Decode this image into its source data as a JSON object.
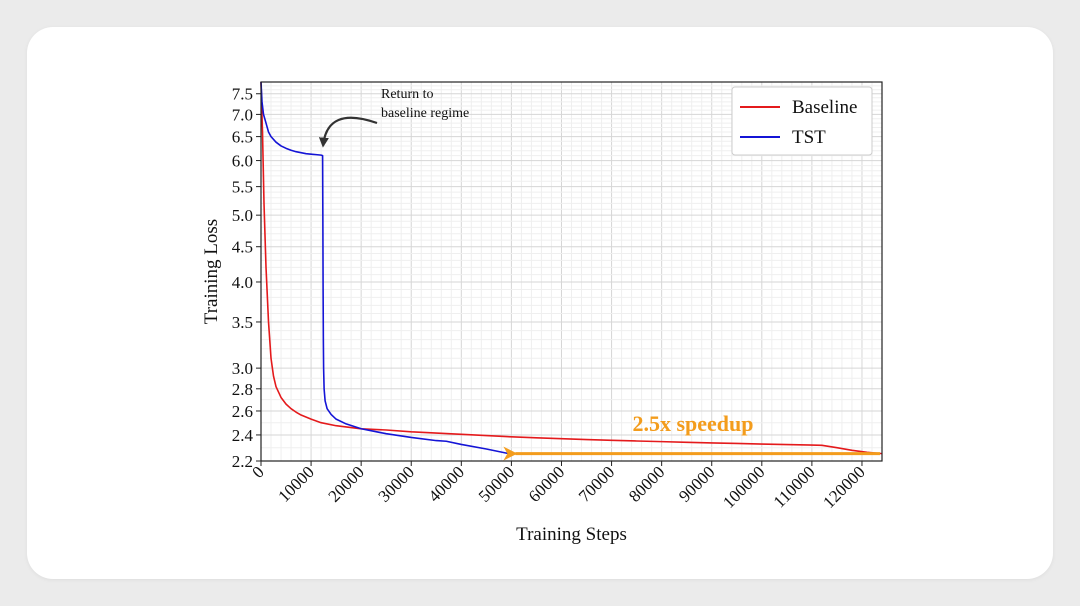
{
  "chart_data": {
    "type": "line",
    "xlabel": "Training Steps",
    "ylabel": "Training Loss",
    "xlim": [
      0,
      124000
    ],
    "ylim": [
      2.2,
      7.8
    ],
    "yscale": "log",
    "grid": true,
    "legend": "top-right",
    "x_ticks": [
      0,
      10000,
      20000,
      30000,
      40000,
      50000,
      60000,
      70000,
      80000,
      90000,
      100000,
      110000,
      120000
    ],
    "x_tick_labels": [
      "0",
      "10000",
      "20000",
      "30000",
      "40000",
      "50000",
      "60000",
      "70000",
      "80000",
      "90000",
      "100000",
      "110000",
      "120000"
    ],
    "y_ticks": [
      2.2,
      2.4,
      2.6,
      2.8,
      3.0,
      3.5,
      4.0,
      4.5,
      5.0,
      5.5,
      6.0,
      6.5,
      7.0,
      7.5
    ],
    "y_tick_labels": [
      "2.2",
      "2.4",
      "2.6",
      "2.8",
      "3.0",
      "3.5",
      "4.0",
      "4.5",
      "5.0",
      "5.5",
      "6.0",
      "6.5",
      "7.0",
      "7.5"
    ],
    "series": [
      {
        "name": "Baseline",
        "color": "#e41a1c",
        "x": [
          0,
          300,
          600,
          1000,
          1500,
          2000,
          2500,
          3000,
          4000,
          5000,
          6000,
          7000,
          8000,
          10000,
          12000,
          15000,
          18000,
          20000,
          25000,
          30000,
          35000,
          40000,
          45000,
          50000,
          55000,
          60000,
          65000,
          70000,
          75000,
          80000,
          85000,
          90000,
          95000,
          100000,
          105000,
          110000,
          112000,
          115000,
          118000,
          121000,
          124000
        ],
        "y": [
          7.8,
          6.6,
          5.2,
          4.2,
          3.5,
          3.1,
          2.92,
          2.82,
          2.72,
          2.66,
          2.62,
          2.59,
          2.565,
          2.53,
          2.5,
          2.475,
          2.46,
          2.45,
          2.44,
          2.425,
          2.415,
          2.405,
          2.395,
          2.385,
          2.377,
          2.37,
          2.363,
          2.357,
          2.352,
          2.347,
          2.342,
          2.337,
          2.333,
          2.328,
          2.324,
          2.32,
          2.318,
          2.3,
          2.28,
          2.265,
          2.255
        ]
      },
      {
        "name": "TST",
        "color": "#1414d6",
        "x": [
          0,
          200,
          500,
          1000,
          1500,
          2000,
          3000,
          4000,
          5000,
          6000,
          7000,
          8000,
          9000,
          10000,
          11000,
          12000,
          12300,
          12350,
          12400,
          12450,
          12500,
          12600,
          12800,
          13200,
          14000,
          15000,
          17000,
          20000,
          25000,
          30000,
          35000,
          37000,
          40000,
          45000,
          49500
        ],
        "y": [
          7.8,
          7.3,
          7.0,
          6.8,
          6.6,
          6.5,
          6.38,
          6.3,
          6.25,
          6.21,
          6.18,
          6.16,
          6.14,
          6.13,
          6.12,
          6.11,
          6.1,
          5.0,
          3.9,
          3.3,
          3.0,
          2.8,
          2.69,
          2.62,
          2.57,
          2.53,
          2.49,
          2.45,
          2.41,
          2.38,
          2.355,
          2.35,
          2.325,
          2.29,
          2.255
        ]
      }
    ],
    "annotations": [
      {
        "text": "Return to",
        "text2": "baseline regime",
        "x": 12000,
        "y": 6.1
      },
      {
        "text": "2.5x speedup",
        "from_x": 124000,
        "to_x": 50000,
        "y": 2.255,
        "color": "#f39c1c"
      }
    ]
  }
}
